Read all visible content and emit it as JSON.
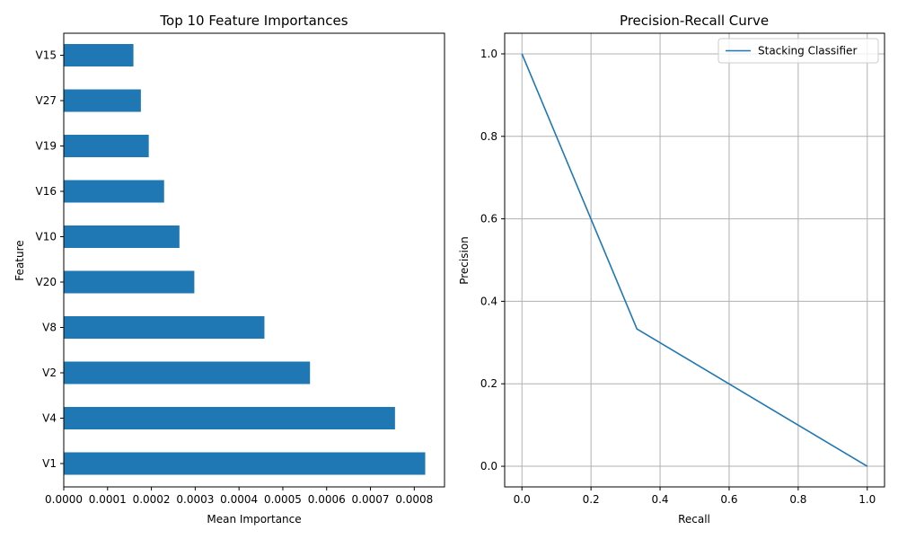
{
  "colors": {
    "bar": "#1f77b4",
    "line": "#1f77b4",
    "grid": "#b0b0b0",
    "axis": "#000000"
  },
  "chart_data": [
    {
      "type": "bar",
      "orientation": "horizontal",
      "title": "Top 10 Feature Importances",
      "xlabel": "Mean Importance",
      "ylabel": "Feature",
      "categories": [
        "V1",
        "V4",
        "V2",
        "V8",
        "V20",
        "V10",
        "V16",
        "V19",
        "V27",
        "V15"
      ],
      "values": [
        0.000825,
        0.000756,
        0.000562,
        0.000458,
        0.000298,
        0.000264,
        0.000229,
        0.000194,
        0.000176,
        0.000159
      ],
      "xlim": [
        0,
        0.000869
      ],
      "xticks": [
        "0.0000",
        "0.0001",
        "0.0002",
        "0.0003",
        "0.0004",
        "0.0005",
        "0.0006",
        "0.0007",
        "0.0008"
      ],
      "grid": false
    },
    {
      "type": "line",
      "title": "Precision-Recall Curve",
      "xlabel": "Recall",
      "ylabel": "Precision",
      "series": [
        {
          "name": "Stacking Classifier",
          "x": [
            0.0,
            0.333,
            1.0
          ],
          "y": [
            1.0,
            0.333,
            0.0
          ]
        }
      ],
      "xlim": [
        -0.05,
        1.05
      ],
      "ylim": [
        -0.05,
        1.05
      ],
      "xticks": [
        "0.0",
        "0.2",
        "0.4",
        "0.6",
        "0.8",
        "1.0"
      ],
      "yticks": [
        "0.0",
        "0.2",
        "0.4",
        "0.6",
        "0.8",
        "1.0"
      ],
      "grid": true,
      "legend": "top-right"
    }
  ]
}
